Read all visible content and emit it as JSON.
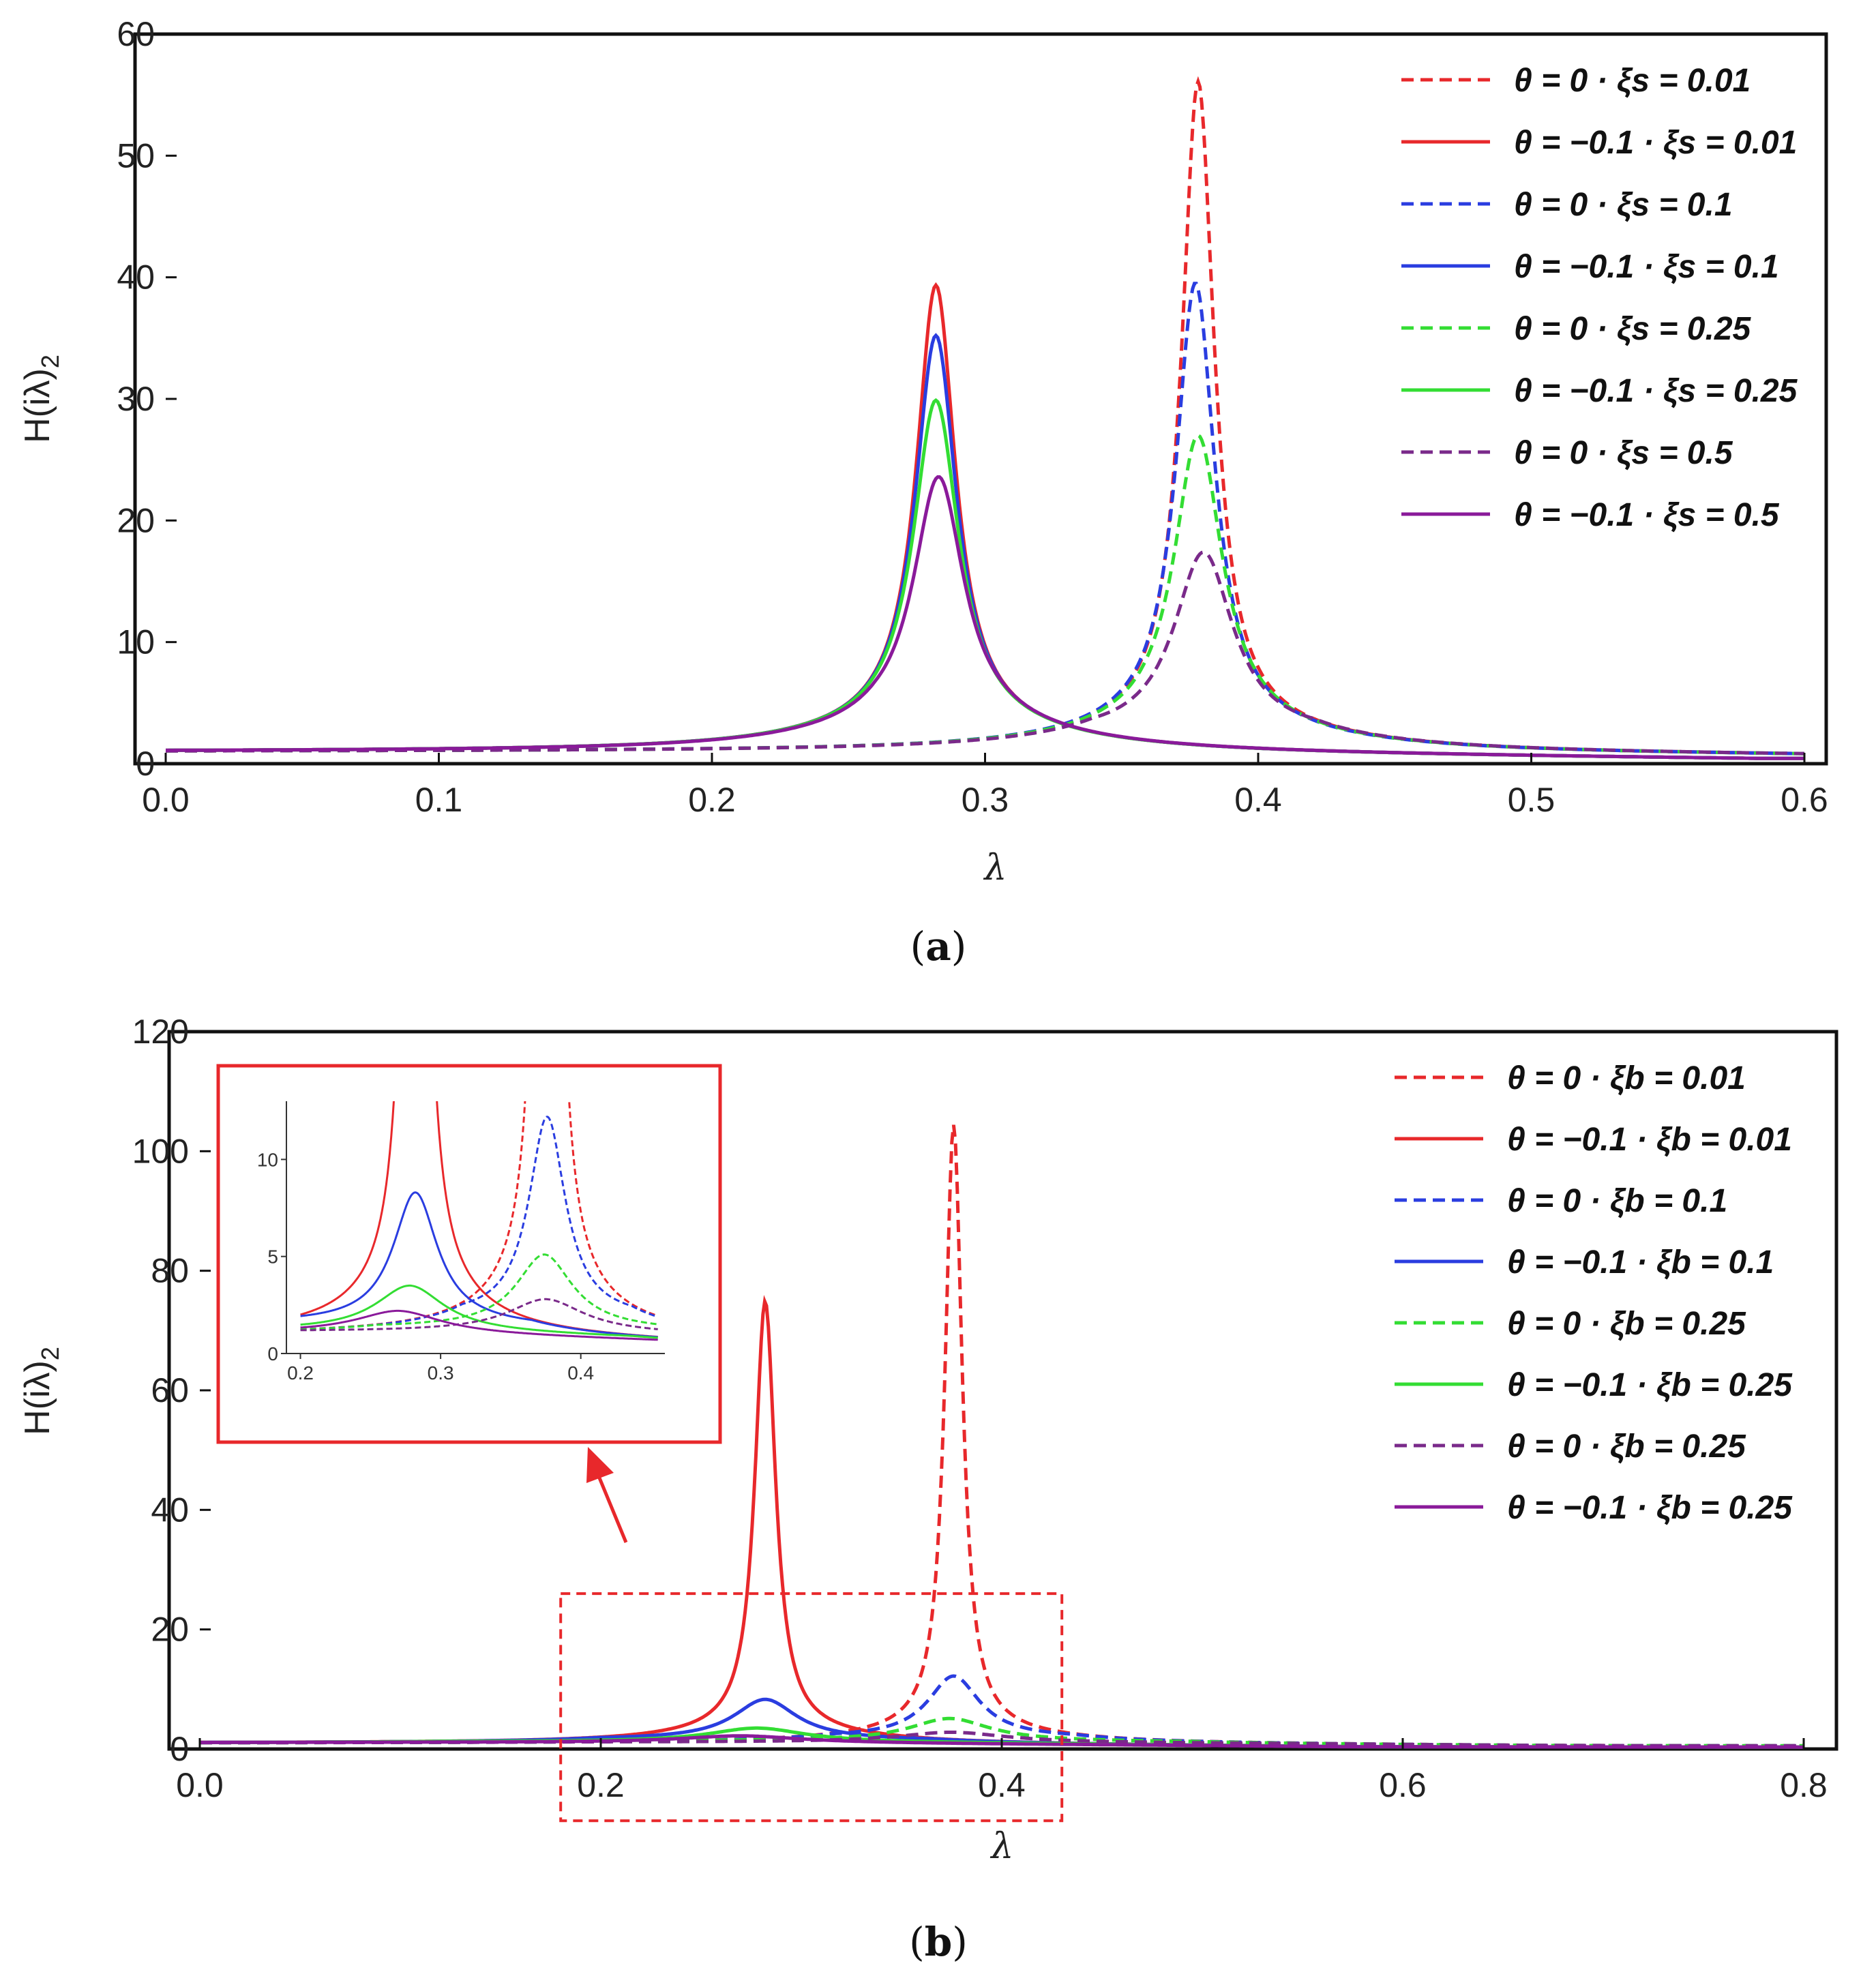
{
  "chart_data": [
    {
      "id": "a",
      "type": "line",
      "caption_letter": "a",
      "xlabel": "λ",
      "ylabel": "H(iλ)",
      "ylabel_sub": "2",
      "xlim": [
        0,
        0.6
      ],
      "ylim": [
        0,
        60
      ],
      "xticks": [
        "0.0",
        "0.1",
        "0.2",
        "0.3",
        "0.4",
        "0.5",
        "0.6"
      ],
      "xtick_values": [
        0,
        0.1,
        0.2,
        0.3,
        0.4,
        0.5,
        0.6
      ],
      "yticks": [
        "0",
        "10",
        "20",
        "30",
        "40",
        "50",
        "60"
      ],
      "ytick_values": [
        0,
        10,
        20,
        30,
        40,
        50,
        60
      ],
      "series": [
        {
          "name": "θ = 0 · ξs = 0.01",
          "color": "#e8282b",
          "style": "dashed",
          "peak_x": 0.378,
          "peak_y": 58.5,
          "base": 1.0,
          "end": 0.55
        },
        {
          "name": "θ = −0.1 · ξs = 0.01",
          "color": "#e8282b",
          "style": "solid",
          "peak_x": 0.282,
          "peak_y": 40.3,
          "base": 1.0,
          "end": 0.35
        },
        {
          "name": "θ = 0 · ξs = 0.1",
          "color": "#2a3de0",
          "style": "dashed",
          "peak_x": 0.377,
          "peak_y": 40.5,
          "base": 1.0,
          "end": 0.55
        },
        {
          "name": "θ = −0.1 · ξs = 0.1",
          "color": "#2a3de0",
          "style": "solid",
          "peak_x": 0.282,
          "peak_y": 35.8,
          "base": 1.0,
          "end": 0.35
        },
        {
          "name": "θ = 0 · ξs = 0.25",
          "color": "#33dd33",
          "style": "dashed",
          "peak_x": 0.378,
          "peak_y": 27.0,
          "base": 1.0,
          "end": 0.55
        },
        {
          "name": "θ = −0.1 · ξs = 0.25",
          "color": "#33dd33",
          "style": "solid",
          "peak_x": 0.282,
          "peak_y": 30.0,
          "base": 1.0,
          "end": 0.35
        },
        {
          "name": "θ = 0 · ξs = 0.5",
          "color": "#7a2a8a",
          "style": "dashed",
          "peak_x": 0.38,
          "peak_y": 17.4,
          "base": 1.0,
          "end": 0.55
        },
        {
          "name": "θ = −0.1 · ξs = 0.5",
          "color": "#8a1a9a",
          "style": "solid",
          "peak_x": 0.283,
          "peak_y": 23.6,
          "base": 1.0,
          "end": 0.35
        }
      ]
    },
    {
      "id": "b",
      "type": "line",
      "caption_letter": "b",
      "xlabel": "λ",
      "ylabel": "H(iλ)",
      "ylabel_sub": "2",
      "xlim": [
        0,
        0.8
      ],
      "ylim": [
        0,
        120
      ],
      "xticks": [
        "0.0",
        "0.2",
        "0.4",
        "0.6",
        "0.8"
      ],
      "xtick_values": [
        0,
        0.2,
        0.4,
        0.6,
        0.8
      ],
      "yticks": [
        "0",
        "20",
        "40",
        "60",
        "80",
        "100",
        "120"
      ],
      "ytick_values": [
        0,
        20,
        40,
        60,
        80,
        100,
        120
      ],
      "series": [
        {
          "name": "θ = 0 · ξb = 0.01",
          "color": "#e8282b",
          "style": "dashed",
          "peak_x": 0.376,
          "peak_y": 111,
          "base": 1.0,
          "end": 0.5
        },
        {
          "name": "θ = −0.1 · ξb = 0.01",
          "color": "#e8282b",
          "style": "solid",
          "peak_x": 0.282,
          "peak_y": 79,
          "base": 1.0,
          "end": 0.3
        },
        {
          "name": "θ = 0 · ξb = 0.1",
          "color": "#2a3de0",
          "style": "dashed",
          "peak_x": 0.376,
          "peak_y": 12.2,
          "base": 1.0,
          "end": 0.5
        },
        {
          "name": "θ = −0.1 · ξb = 0.1",
          "color": "#2a3de0",
          "style": "solid",
          "peak_x": 0.282,
          "peak_y": 8.3,
          "base": 1.0,
          "end": 0.3
        },
        {
          "name": "θ = 0 · ξb = 0.25",
          "color": "#33dd33",
          "style": "dashed",
          "peak_x": 0.374,
          "peak_y": 5.1,
          "base": 1.0,
          "end": 0.5
        },
        {
          "name": "θ = −0.1 · ξb = 0.25",
          "color": "#33dd33",
          "style": "solid",
          "peak_x": 0.278,
          "peak_y": 3.5,
          "base": 1.0,
          "end": 0.3
        },
        {
          "name": "θ = 0 · ξb = 0.25",
          "color": "#7a2a8a",
          "style": "dashed",
          "peak_x": 0.375,
          "peak_y": 2.8,
          "base": 1.0,
          "end": 0.5
        },
        {
          "name": "θ = −0.1 · ξb = 0.25",
          "color": "#8a1a9a",
          "style": "solid",
          "peak_x": 0.27,
          "peak_y": 2.2,
          "base": 1.0,
          "end": 0.3
        }
      ],
      "inset": {
        "xlim": [
          0.19,
          0.46
        ],
        "ylim": [
          0,
          13
        ],
        "xticks": [
          "0.2",
          "0.3",
          "0.4"
        ],
        "xtick_values": [
          0.2,
          0.3,
          0.4
        ],
        "yticks": [
          "0",
          "5",
          "10"
        ],
        "ytick_values": [
          0,
          5,
          10
        ],
        "zoom_region_x": [
          0.18,
          0.43
        ],
        "zoom_region_y": [
          -12,
          26
        ]
      }
    }
  ]
}
